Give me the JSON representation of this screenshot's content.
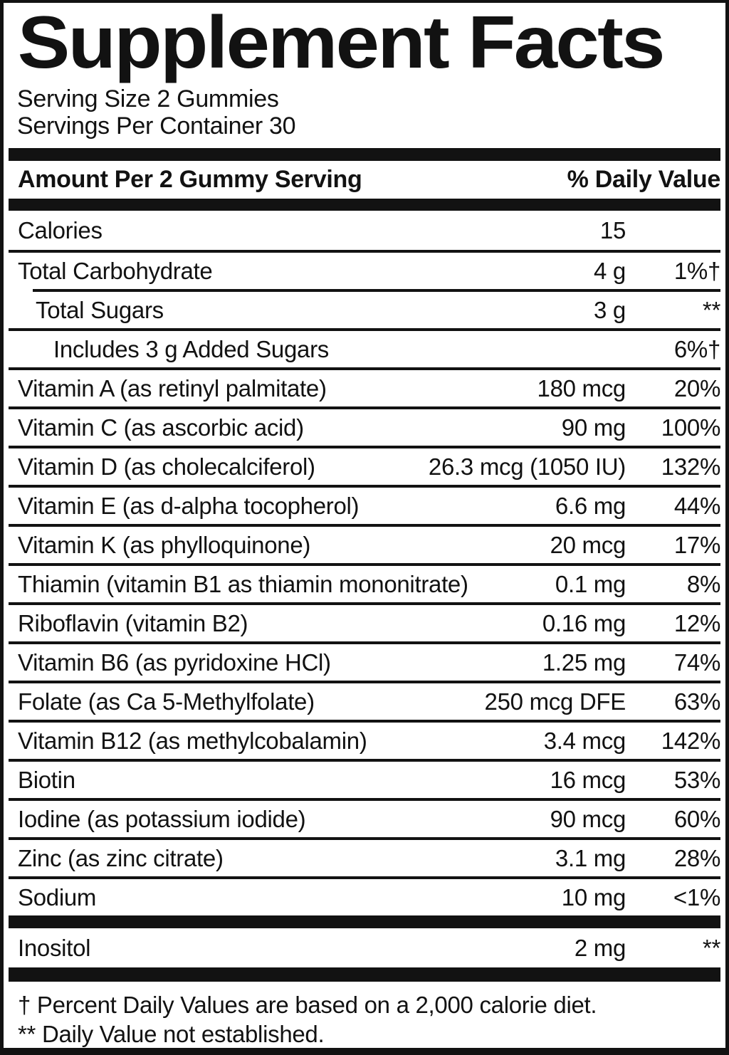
{
  "colors": {
    "ink": "#121212",
    "background": "#ffffff"
  },
  "label": {
    "title": "Supplement Facts",
    "serving_size": "Serving Size 2 Gummies",
    "servings_per_container": "Servings Per Container 30",
    "columns": {
      "amount": "Amount Per 2 Gummy Serving",
      "daily_value": "% Daily Value"
    },
    "rows": [
      {
        "name": "Calories",
        "amount": "15",
        "dv": "",
        "indent": 0,
        "rule": false
      },
      {
        "name": "Total Carbohydrate",
        "amount": "4 g",
        "dv": "1%†",
        "indent": 0,
        "rule": true
      },
      {
        "name": "Total Sugars",
        "amount": "3 g",
        "dv": "**",
        "indent": 1,
        "rule": true
      },
      {
        "name": "Includes 3 g Added Sugars",
        "amount": "",
        "dv": "6%†",
        "indent": 2,
        "rule": true
      },
      {
        "name": "Vitamin A (as retinyl palmitate)",
        "amount": "180 mcg",
        "dv": "20%",
        "indent": 0,
        "rule": true
      },
      {
        "name": "Vitamin C (as ascorbic acid)",
        "amount": "90 mg",
        "dv": "100%",
        "indent": 0,
        "rule": true
      },
      {
        "name": "Vitamin D (as cholecalciferol)",
        "amount": "26.3 mcg (1050 IU)",
        "dv": "132%",
        "indent": 0,
        "rule": true
      },
      {
        "name": "Vitamin E (as d-alpha tocopherol)",
        "amount": "6.6 mg",
        "dv": "44%",
        "indent": 0,
        "rule": true
      },
      {
        "name": "Vitamin K (as phylloquinone)",
        "amount": "20 mcg",
        "dv": "17%",
        "indent": 0,
        "rule": true
      },
      {
        "name": "Thiamin (vitamin B1 as thiamin mononitrate)",
        "amount": "0.1 mg",
        "dv": "8%",
        "indent": 0,
        "rule": true
      },
      {
        "name": "Riboflavin (vitamin B2)",
        "amount": "0.16 mg",
        "dv": "12%",
        "indent": 0,
        "rule": true
      },
      {
        "name": "Vitamin B6 (as pyridoxine HCl)",
        "amount": "1.25 mg",
        "dv": "74%",
        "indent": 0,
        "rule": true
      },
      {
        "name": "Folate (as Ca 5-Methylfolate)",
        "amount": "250 mcg DFE",
        "dv": "63%",
        "indent": 0,
        "rule": true
      },
      {
        "name": "Vitamin B12 (as methylcobalamin)",
        "amount": "3.4 mcg",
        "dv": "142%",
        "indent": 0,
        "rule": true
      },
      {
        "name": "Biotin",
        "amount": "16 mcg",
        "dv": "53%",
        "indent": 0,
        "rule": true
      },
      {
        "name": "Iodine (as potassium iodide)",
        "amount": "90 mcg",
        "dv": "60%",
        "indent": 0,
        "rule": true
      },
      {
        "name": "Zinc (as zinc citrate)",
        "amount": "3.1 mg",
        "dv": "28%",
        "indent": 0,
        "rule": true
      },
      {
        "name": "Sodium",
        "amount": "10 mg",
        "dv": "<1%",
        "indent": 0,
        "rule": true
      }
    ],
    "secondary_rows": [
      {
        "name": "Inositol",
        "amount": "2 mg",
        "dv": "**",
        "indent": 0,
        "rule": false
      }
    ],
    "footnotes": [
      "† Percent Daily Values are based on a 2,000 calorie diet.",
      "** Daily Value not established."
    ]
  }
}
